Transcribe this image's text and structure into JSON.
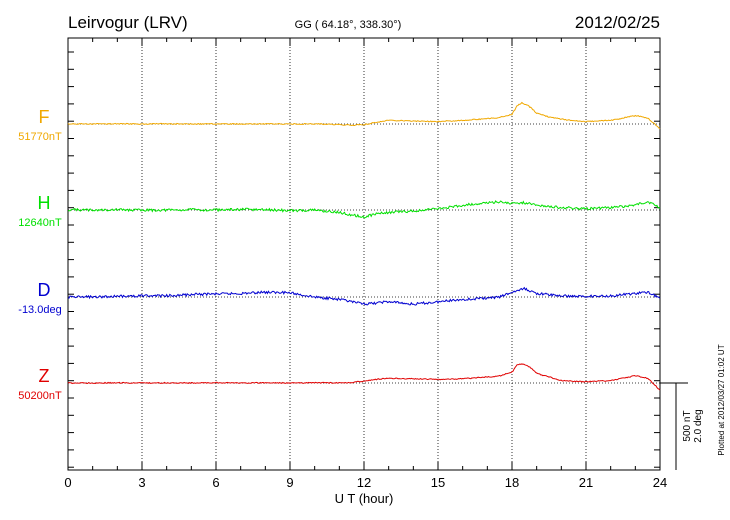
{
  "header": {
    "station": "Leirvogur (LRV)",
    "coords": "GG ( 64.18°, 338.30°)",
    "date": "2012/02/25"
  },
  "footer_note": "Plotted at 2012/03/27 01:02 UT",
  "scale_bar": {
    "label_nt": "500 nT",
    "label_deg": "2.0 deg"
  },
  "colors": {
    "F": "#f0a800",
    "H": "#00e000",
    "D": "#0000d0",
    "Z": "#e00000",
    "axis": "#000000"
  },
  "chart_data": {
    "type": "line",
    "title": "",
    "xlabel": "U T (hour)",
    "ylabel": "",
    "xlim": [
      0,
      24
    ],
    "xticks": [
      0,
      3,
      6,
      9,
      12,
      15,
      18,
      21,
      24
    ],
    "grid": true,
    "series": [
      {
        "name": "F",
        "baseline_label": "51770nT",
        "color": "#f0a800",
        "x": [
          0,
          1,
          2,
          3,
          4,
          5,
          6,
          7,
          8,
          9,
          10,
          11,
          11.5,
          12,
          12.5,
          13,
          14,
          15,
          16,
          17,
          17.5,
          18,
          18.2,
          18.4,
          18.6,
          18.8,
          19,
          19.5,
          20,
          21,
          22,
          23,
          23.5,
          24
        ],
        "y": [
          1,
          0,
          2,
          0,
          1,
          0,
          1,
          0,
          1,
          0,
          1,
          -5,
          -10,
          -5,
          15,
          30,
          25,
          20,
          30,
          45,
          55,
          80,
          150,
          175,
          160,
          130,
          90,
          60,
          40,
          20,
          30,
          70,
          50,
          -40
        ]
      },
      {
        "name": "H",
        "baseline_label": "12640nT",
        "color": "#00e000",
        "x": [
          0,
          1,
          2,
          3,
          4,
          5,
          6,
          7,
          8,
          9,
          10,
          11,
          11.5,
          12,
          12.5,
          13,
          14,
          15,
          16,
          17,
          17.5,
          18,
          18.5,
          19,
          20,
          21,
          22,
          23,
          23.5,
          24
        ],
        "y": [
          2,
          0,
          3,
          -2,
          0,
          2,
          0,
          5,
          3,
          -5,
          0,
          -20,
          -40,
          -60,
          -30,
          -20,
          -10,
          10,
          40,
          60,
          70,
          55,
          60,
          40,
          20,
          10,
          20,
          40,
          70,
          20
        ]
      },
      {
        "name": "D",
        "baseline_label": "-13.0deg",
        "color": "#0000d0",
        "x": [
          0,
          1,
          2,
          3,
          4,
          5,
          6,
          7,
          8,
          9,
          10,
          11,
          11.5,
          12,
          12.5,
          13,
          14,
          15,
          16,
          17,
          17.5,
          18,
          18.5,
          19,
          20,
          21,
          22,
          23,
          23.5,
          24
        ],
        "y": [
          0,
          0,
          5,
          10,
          10,
          20,
          25,
          30,
          40,
          35,
          0,
          -20,
          -40,
          -60,
          -50,
          -40,
          -60,
          -40,
          -20,
          -10,
          0,
          40,
          70,
          30,
          10,
          5,
          10,
          30,
          40,
          -10
        ]
      },
      {
        "name": "Z",
        "baseline_label": "50200nT",
        "color": "#e00000",
        "x": [
          0,
          1,
          2,
          3,
          4,
          5,
          6,
          7,
          8,
          9,
          10,
          11,
          11.5,
          12,
          12.5,
          13,
          14,
          15,
          16,
          17,
          17.5,
          18,
          18.2,
          18.4,
          18.6,
          18.8,
          19,
          19.5,
          20,
          21,
          22,
          23,
          23.5,
          24
        ],
        "y": [
          0,
          0,
          2,
          0,
          1,
          0,
          2,
          0,
          1,
          0,
          2,
          0,
          5,
          15,
          30,
          40,
          35,
          30,
          35,
          50,
          60,
          90,
          150,
          160,
          150,
          120,
          80,
          50,
          20,
          10,
          20,
          60,
          40,
          -60
        ]
      }
    ]
  }
}
